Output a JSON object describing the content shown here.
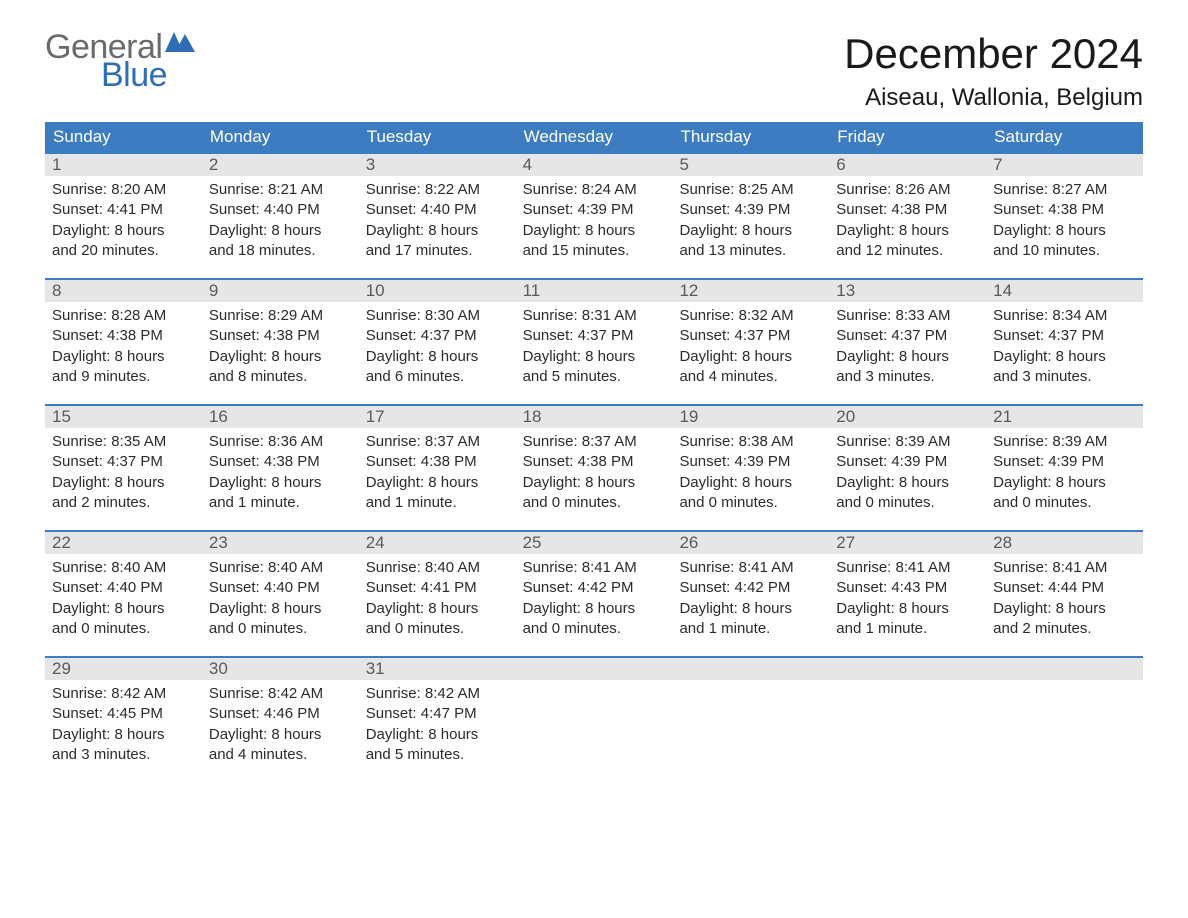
{
  "logo": {
    "text_general": "General",
    "text_blue": "Blue",
    "general_color": "#6a6a6a",
    "blue_color": "#2f6eb5",
    "flag_color": "#2f6eb5"
  },
  "title": {
    "month_year": "December 2024",
    "location": "Aiseau, Wallonia, Belgium"
  },
  "styling": {
    "header_bg": "#3d7cc0",
    "header_text_color": "#ffffff",
    "daynum_bg": "#e6e6e6",
    "daynum_color": "#5a5a5a",
    "week_border_color": "#3d7cc0",
    "body_text_color": "#2b2b2b",
    "page_bg": "#ffffff",
    "title_fontsize": 42,
    "location_fontsize": 24,
    "dayheader_fontsize": 17,
    "cell_fontsize": 15
  },
  "day_labels": [
    "Sunday",
    "Monday",
    "Tuesday",
    "Wednesday",
    "Thursday",
    "Friday",
    "Saturday"
  ],
  "weeks": [
    [
      {
        "n": "1",
        "sunrise": "Sunrise: 8:20 AM",
        "sunset": "Sunset: 4:41 PM",
        "d1": "Daylight: 8 hours",
        "d2": "and 20 minutes."
      },
      {
        "n": "2",
        "sunrise": "Sunrise: 8:21 AM",
        "sunset": "Sunset: 4:40 PM",
        "d1": "Daylight: 8 hours",
        "d2": "and 18 minutes."
      },
      {
        "n": "3",
        "sunrise": "Sunrise: 8:22 AM",
        "sunset": "Sunset: 4:40 PM",
        "d1": "Daylight: 8 hours",
        "d2": "and 17 minutes."
      },
      {
        "n": "4",
        "sunrise": "Sunrise: 8:24 AM",
        "sunset": "Sunset: 4:39 PM",
        "d1": "Daylight: 8 hours",
        "d2": "and 15 minutes."
      },
      {
        "n": "5",
        "sunrise": "Sunrise: 8:25 AM",
        "sunset": "Sunset: 4:39 PM",
        "d1": "Daylight: 8 hours",
        "d2": "and 13 minutes."
      },
      {
        "n": "6",
        "sunrise": "Sunrise: 8:26 AM",
        "sunset": "Sunset: 4:38 PM",
        "d1": "Daylight: 8 hours",
        "d2": "and 12 minutes."
      },
      {
        "n": "7",
        "sunrise": "Sunrise: 8:27 AM",
        "sunset": "Sunset: 4:38 PM",
        "d1": "Daylight: 8 hours",
        "d2": "and 10 minutes."
      }
    ],
    [
      {
        "n": "8",
        "sunrise": "Sunrise: 8:28 AM",
        "sunset": "Sunset: 4:38 PM",
        "d1": "Daylight: 8 hours",
        "d2": "and 9 minutes."
      },
      {
        "n": "9",
        "sunrise": "Sunrise: 8:29 AM",
        "sunset": "Sunset: 4:38 PM",
        "d1": "Daylight: 8 hours",
        "d2": "and 8 minutes."
      },
      {
        "n": "10",
        "sunrise": "Sunrise: 8:30 AM",
        "sunset": "Sunset: 4:37 PM",
        "d1": "Daylight: 8 hours",
        "d2": "and 6 minutes."
      },
      {
        "n": "11",
        "sunrise": "Sunrise: 8:31 AM",
        "sunset": "Sunset: 4:37 PM",
        "d1": "Daylight: 8 hours",
        "d2": "and 5 minutes."
      },
      {
        "n": "12",
        "sunrise": "Sunrise: 8:32 AM",
        "sunset": "Sunset: 4:37 PM",
        "d1": "Daylight: 8 hours",
        "d2": "and 4 minutes."
      },
      {
        "n": "13",
        "sunrise": "Sunrise: 8:33 AM",
        "sunset": "Sunset: 4:37 PM",
        "d1": "Daylight: 8 hours",
        "d2": "and 3 minutes."
      },
      {
        "n": "14",
        "sunrise": "Sunrise: 8:34 AM",
        "sunset": "Sunset: 4:37 PM",
        "d1": "Daylight: 8 hours",
        "d2": "and 3 minutes."
      }
    ],
    [
      {
        "n": "15",
        "sunrise": "Sunrise: 8:35 AM",
        "sunset": "Sunset: 4:37 PM",
        "d1": "Daylight: 8 hours",
        "d2": "and 2 minutes."
      },
      {
        "n": "16",
        "sunrise": "Sunrise: 8:36 AM",
        "sunset": "Sunset: 4:38 PM",
        "d1": "Daylight: 8 hours",
        "d2": "and 1 minute."
      },
      {
        "n": "17",
        "sunrise": "Sunrise: 8:37 AM",
        "sunset": "Sunset: 4:38 PM",
        "d1": "Daylight: 8 hours",
        "d2": "and 1 minute."
      },
      {
        "n": "18",
        "sunrise": "Sunrise: 8:37 AM",
        "sunset": "Sunset: 4:38 PM",
        "d1": "Daylight: 8 hours",
        "d2": "and 0 minutes."
      },
      {
        "n": "19",
        "sunrise": "Sunrise: 8:38 AM",
        "sunset": "Sunset: 4:39 PM",
        "d1": "Daylight: 8 hours",
        "d2": "and 0 minutes."
      },
      {
        "n": "20",
        "sunrise": "Sunrise: 8:39 AM",
        "sunset": "Sunset: 4:39 PM",
        "d1": "Daylight: 8 hours",
        "d2": "and 0 minutes."
      },
      {
        "n": "21",
        "sunrise": "Sunrise: 8:39 AM",
        "sunset": "Sunset: 4:39 PM",
        "d1": "Daylight: 8 hours",
        "d2": "and 0 minutes."
      }
    ],
    [
      {
        "n": "22",
        "sunrise": "Sunrise: 8:40 AM",
        "sunset": "Sunset: 4:40 PM",
        "d1": "Daylight: 8 hours",
        "d2": "and 0 minutes."
      },
      {
        "n": "23",
        "sunrise": "Sunrise: 8:40 AM",
        "sunset": "Sunset: 4:40 PM",
        "d1": "Daylight: 8 hours",
        "d2": "and 0 minutes."
      },
      {
        "n": "24",
        "sunrise": "Sunrise: 8:40 AM",
        "sunset": "Sunset: 4:41 PM",
        "d1": "Daylight: 8 hours",
        "d2": "and 0 minutes."
      },
      {
        "n": "25",
        "sunrise": "Sunrise: 8:41 AM",
        "sunset": "Sunset: 4:42 PM",
        "d1": "Daylight: 8 hours",
        "d2": "and 0 minutes."
      },
      {
        "n": "26",
        "sunrise": "Sunrise: 8:41 AM",
        "sunset": "Sunset: 4:42 PM",
        "d1": "Daylight: 8 hours",
        "d2": "and 1 minute."
      },
      {
        "n": "27",
        "sunrise": "Sunrise: 8:41 AM",
        "sunset": "Sunset: 4:43 PM",
        "d1": "Daylight: 8 hours",
        "d2": "and 1 minute."
      },
      {
        "n": "28",
        "sunrise": "Sunrise: 8:41 AM",
        "sunset": "Sunset: 4:44 PM",
        "d1": "Daylight: 8 hours",
        "d2": "and 2 minutes."
      }
    ],
    [
      {
        "n": "29",
        "sunrise": "Sunrise: 8:42 AM",
        "sunset": "Sunset: 4:45 PM",
        "d1": "Daylight: 8 hours",
        "d2": "and 3 minutes."
      },
      {
        "n": "30",
        "sunrise": "Sunrise: 8:42 AM",
        "sunset": "Sunset: 4:46 PM",
        "d1": "Daylight: 8 hours",
        "d2": "and 4 minutes."
      },
      {
        "n": "31",
        "sunrise": "Sunrise: 8:42 AM",
        "sunset": "Sunset: 4:47 PM",
        "d1": "Daylight: 8 hours",
        "d2": "and 5 minutes."
      },
      {
        "empty": true
      },
      {
        "empty": true
      },
      {
        "empty": true
      },
      {
        "empty": true
      }
    ]
  ]
}
